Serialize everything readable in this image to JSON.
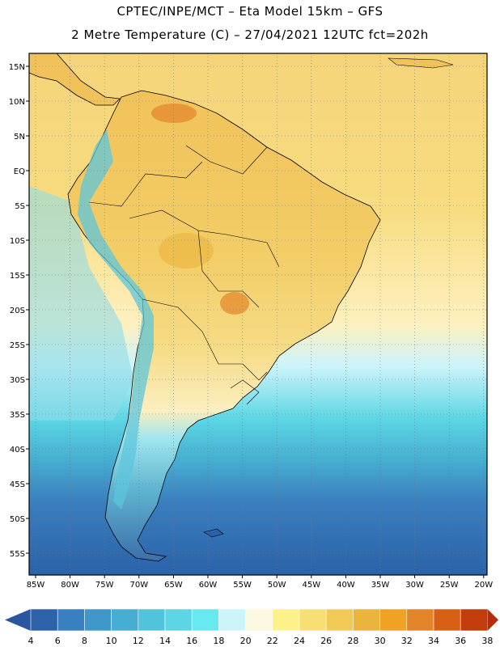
{
  "header": {
    "line1": "CPTEC/INPE/MCT –  Eta Model 15km – GFS",
    "line2": "2 Metre Temperature (C) – 27/04/2021 12UTC fct=202h"
  },
  "axes": {
    "lat_labels": [
      "15N",
      "10N",
      "5N",
      "EQ",
      "5S",
      "10S",
      "15S",
      "20S",
      "25S",
      "30S",
      "35S",
      "40S",
      "45S",
      "50S",
      "55S"
    ],
    "lon_labels": [
      "85W",
      "80W",
      "75W",
      "70W",
      "65W",
      "60W",
      "55W",
      "50W",
      "45W",
      "40W",
      "35W",
      "30W",
      "25W",
      "20W"
    ]
  },
  "colorbar": {
    "values": [
      "4",
      "6",
      "8",
      "10",
      "12",
      "14",
      "16",
      "18",
      "20",
      "22",
      "24",
      "26",
      "28",
      "30",
      "32",
      "34",
      "36",
      "38"
    ],
    "colors": [
      "#2b62a8",
      "#3a7fbf",
      "#3f96c8",
      "#46aed1",
      "#4fc4da",
      "#5cd6e4",
      "#66eaf0",
      "#ccf4fb",
      "#fdf8e0",
      "#fdf28a",
      "#f8df74",
      "#f1ca56",
      "#ebb43c",
      "#f0a322",
      "#e38428",
      "#d86014",
      "#c23c0c"
    ],
    "low_end_color": "#2a56a0",
    "high_end_color": "#b82c08"
  }
}
